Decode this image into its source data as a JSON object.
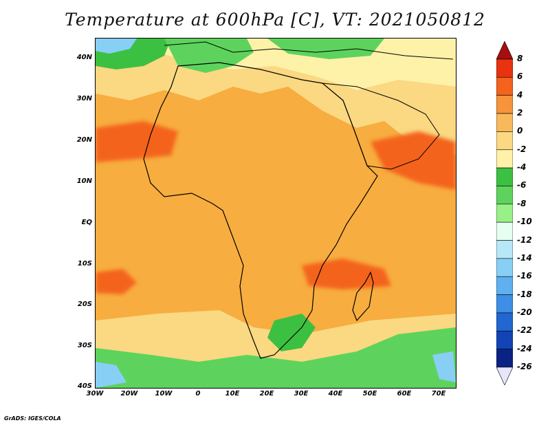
{
  "title": "Temperature at 600hPa [C], VT: 2021050812",
  "credit": "GrADS: IGES/COLA",
  "map": {
    "lat_labels": [
      "40N",
      "30N",
      "20N",
      "10N",
      "EQ",
      "10S",
      "20S",
      "30S",
      "40S"
    ],
    "lon_labels": [
      "30W",
      "20W",
      "10W",
      "0",
      "10E",
      "20E",
      "30E",
      "40E",
      "50E",
      "60E",
      "70E"
    ]
  },
  "colorbar": {
    "labels": [
      "8",
      "6",
      "4",
      "2",
      "0",
      "-2",
      "-4",
      "-6",
      "-8",
      "-10",
      "-12",
      "-14",
      "-16",
      "-18",
      "-20",
      "-22",
      "-24",
      "-26"
    ],
    "colors": [
      "#a50f0f",
      "#e83210",
      "#f4631c",
      "#f7933a",
      "#f8b85c",
      "#fbd882",
      "#fef1a8",
      "#3cc041",
      "#5dd35d",
      "#98f088",
      "#e6fff0",
      "#b6e8f8",
      "#88cff6",
      "#5fb0ef",
      "#3d8fe6",
      "#2166d1",
      "#1144b5",
      "#0a2383",
      "#e6e6fa"
    ]
  },
  "colors": {
    "warm_base": "#f7ad3f",
    "hot": "#f4631c",
    "mild": "#fbd882",
    "cool": "#5dd35d",
    "coast": "#000000"
  }
}
